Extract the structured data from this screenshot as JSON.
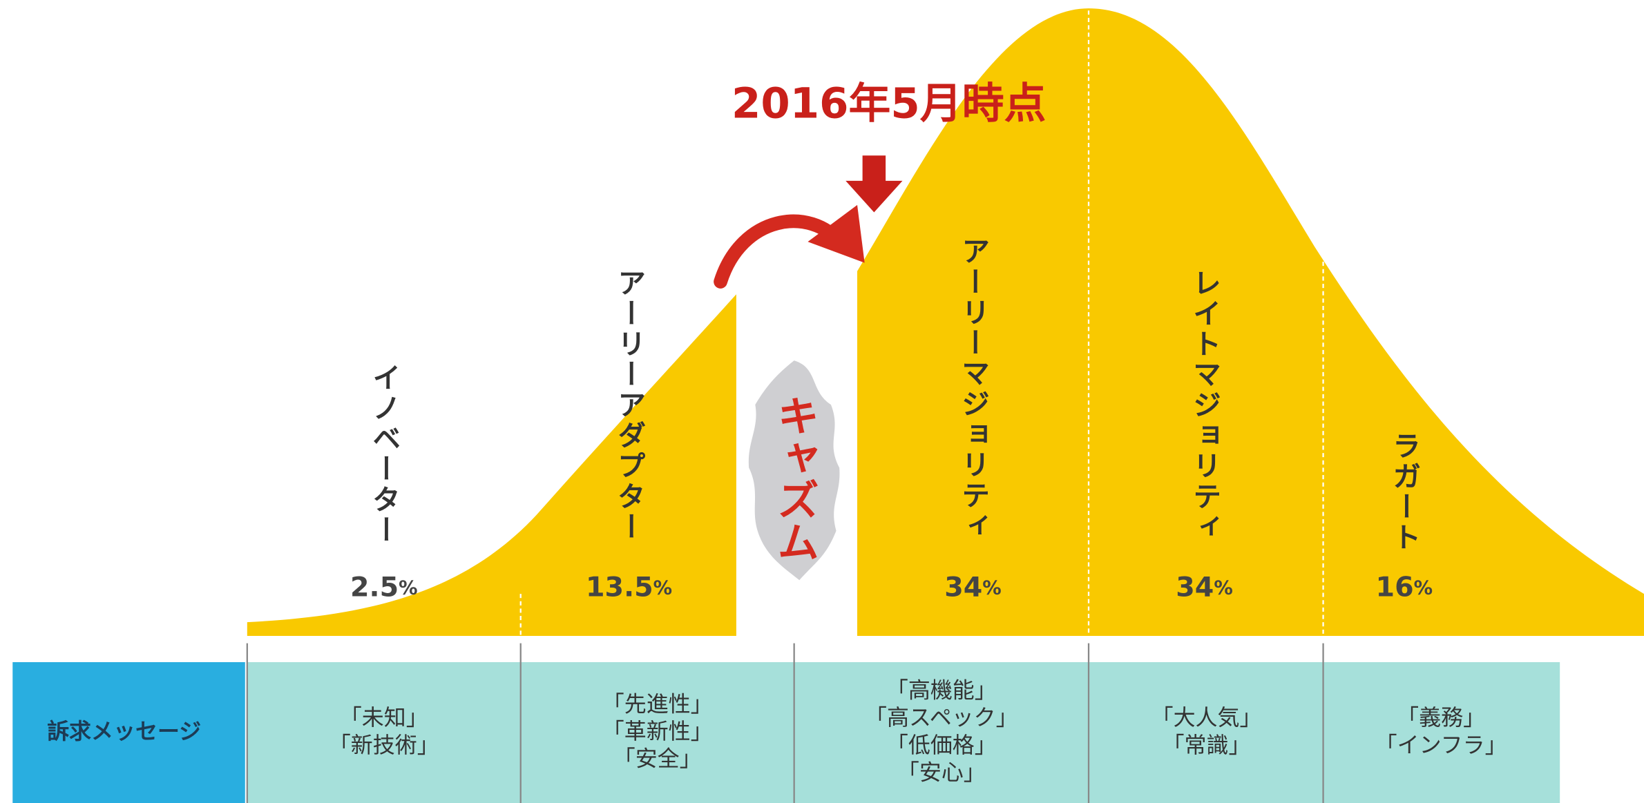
{
  "title": "2016年5月時点",
  "chasm": "キャズム",
  "row_header": "訴求メッセージ",
  "segments": [
    {
      "label": "イノベーター",
      "share": "2.5",
      "unit": "%",
      "messages": [
        "「未知」",
        "「新技術」"
      ]
    },
    {
      "label": "アーリーアダプター",
      "share": "13.5",
      "unit": "%",
      "messages": [
        "「先進性」",
        "「革新性」",
        "「安全」"
      ]
    },
    {
      "label": "アーリーマジョリティ",
      "share": "34",
      "unit": "%",
      "messages": [
        "「高機能」",
        "「高スペック」",
        "「低価格」",
        "「安心」"
      ]
    },
    {
      "label": "レイトマジョリティ",
      "share": "34",
      "unit": "%",
      "messages": [
        "「大人気」",
        "「常識」"
      ]
    },
    {
      "label": "ラガート",
      "share": "16",
      "unit": "%",
      "messages": [
        "「義務」",
        "「インフラ」"
      ]
    }
  ]
}
